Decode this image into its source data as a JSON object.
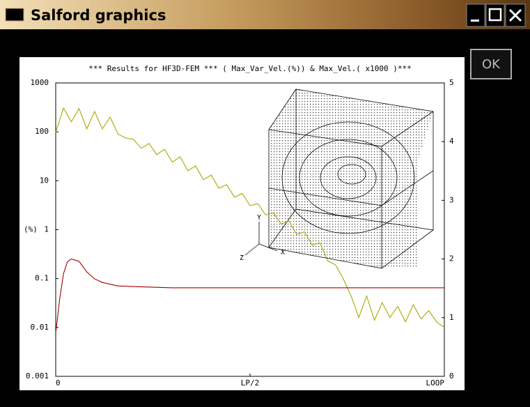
{
  "window": {
    "title": "Salford graphics",
    "ok_button": "OK"
  },
  "chart_data": {
    "type": "line",
    "title": "*** Results for HF3D-FEM *** ( Max_Var_Vel.(%)) & Max_Vel.( x1000 )***",
    "y_label": "(%)",
    "xlim": [
      0,
      100
    ],
    "xticks": [
      0,
      {
        "value": 50,
        "label": "LP/2"
      },
      {
        "value": 100,
        "label": "LOOP"
      }
    ],
    "ylim": [
      0.001,
      1000
    ],
    "ylog": true,
    "yticks": [
      0.001,
      0.01,
      0.1,
      1,
      10,
      100,
      1000
    ],
    "y2lim": [
      0,
      5
    ],
    "y2ticks": [
      0,
      1,
      2,
      3,
      4,
      5
    ],
    "inset_axis_labels": [
      "Y",
      "X",
      "Z"
    ],
    "series": [
      {
        "color": "#a8a800",
        "x": [
          0,
          2,
          4,
          6,
          8,
          10,
          12,
          14,
          16,
          18,
          20,
          22,
          24,
          26,
          28,
          30,
          32,
          34,
          36,
          38,
          40,
          42,
          44,
          46,
          48,
          50,
          52,
          54,
          56,
          58,
          60,
          62,
          64,
          66,
          68,
          70,
          72,
          74,
          76,
          78,
          80,
          82,
          84,
          86,
          88,
          90,
          92,
          94,
          96,
          98,
          100
        ],
        "values": [
          97,
          307,
          160,
          300,
          115,
          260,
          115,
          200,
          90,
          75,
          70,
          46,
          58,
          34,
          44,
          24,
          31,
          16,
          20,
          10.5,
          13,
          7,
          8.3,
          4.6,
          5.5,
          3.1,
          3.4,
          2.0,
          2.2,
          1.3,
          1.5,
          0.8,
          0.9,
          0.48,
          0.54,
          0.23,
          0.19,
          0.099,
          0.044,
          0.016,
          0.044,
          0.014,
          0.032,
          0.016,
          0.027,
          0.013,
          0.029,
          0.015,
          0.022,
          0.013,
          0.01
        ]
      },
      {
        "color": "#a00000",
        "axis": "y2",
        "x": [
          0,
          1,
          2,
          3,
          4,
          5,
          6,
          8,
          10,
          12,
          14,
          16,
          20,
          30,
          100
        ],
        "values": [
          0.74,
          1.31,
          1.75,
          1.95,
          2.0,
          1.98,
          1.96,
          1.78,
          1.66,
          1.6,
          1.57,
          1.54,
          1.53,
          1.51,
          1.51
        ]
      }
    ]
  }
}
